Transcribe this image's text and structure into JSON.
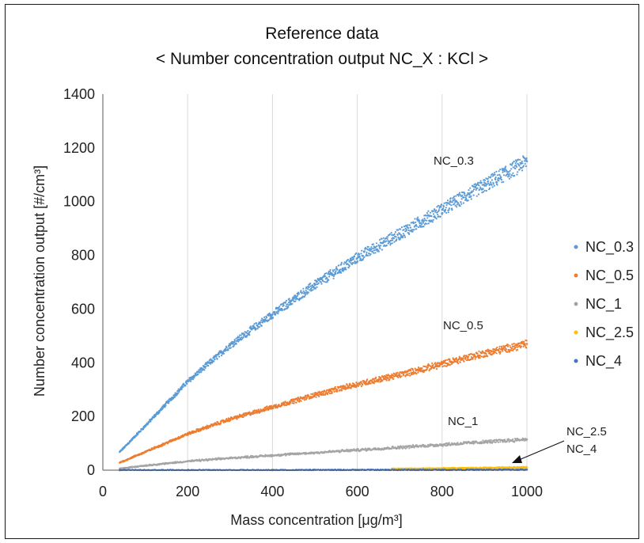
{
  "chart_data": {
    "type": "scatter",
    "title": "Reference data",
    "subtitle": "< Number concentration output NC_X : KCl >",
    "xlabel": "Mass concentration [μg/m³]",
    "ylabel": "Number concentration output [#/cm³]",
    "xlim": [
      0,
      1000
    ],
    "ylim": [
      0,
      1400
    ],
    "x_ticks": [
      0,
      200,
      400,
      600,
      800,
      1000
    ],
    "y_ticks": [
      0,
      200,
      400,
      600,
      800,
      1000,
      1200,
      1400
    ],
    "grid": "vertical",
    "legend_position": "right",
    "x_range_of_points": [
      40,
      1000
    ],
    "series": [
      {
        "name": "NC_0.3",
        "color": "#5B9BD5",
        "x": [
          40,
          100,
          200,
          300,
          400,
          500,
          600,
          700,
          800,
          900,
          1000
        ],
        "y": [
          68,
          165,
          330,
          465,
          580,
          690,
          790,
          880,
          970,
          1060,
          1150
        ]
      },
      {
        "name": "NC_0.5",
        "color": "#ED7D31",
        "x": [
          40,
          100,
          200,
          300,
          400,
          500,
          600,
          700,
          800,
          900,
          1000
        ],
        "y": [
          28,
          68,
          135,
          190,
          235,
          280,
          320,
          355,
          395,
          435,
          470
        ]
      },
      {
        "name": "NC_1",
        "color": "#A5A5A5",
        "x": [
          40,
          100,
          200,
          300,
          400,
          500,
          600,
          700,
          800,
          900,
          1000
        ],
        "y": [
          6,
          17,
          33,
          45,
          55,
          65,
          75,
          85,
          95,
          105,
          115
        ]
      },
      {
        "name": "NC_2.5",
        "color": "#FFC000",
        "x": [
          40,
          200,
          400,
          600,
          700,
          800,
          900,
          1000
        ],
        "y": [
          0,
          1,
          2,
          3,
          5,
          6,
          8,
          10
        ]
      },
      {
        "name": "NC_4",
        "color": "#4472C4",
        "x": [
          40,
          200,
          400,
          600,
          800,
          1000
        ],
        "y": [
          0,
          0,
          0,
          1,
          1,
          2
        ]
      }
    ],
    "annotations": [
      "NC_0.3",
      "NC_0.5",
      "NC_1",
      "NC_2.5",
      "NC_4"
    ]
  }
}
